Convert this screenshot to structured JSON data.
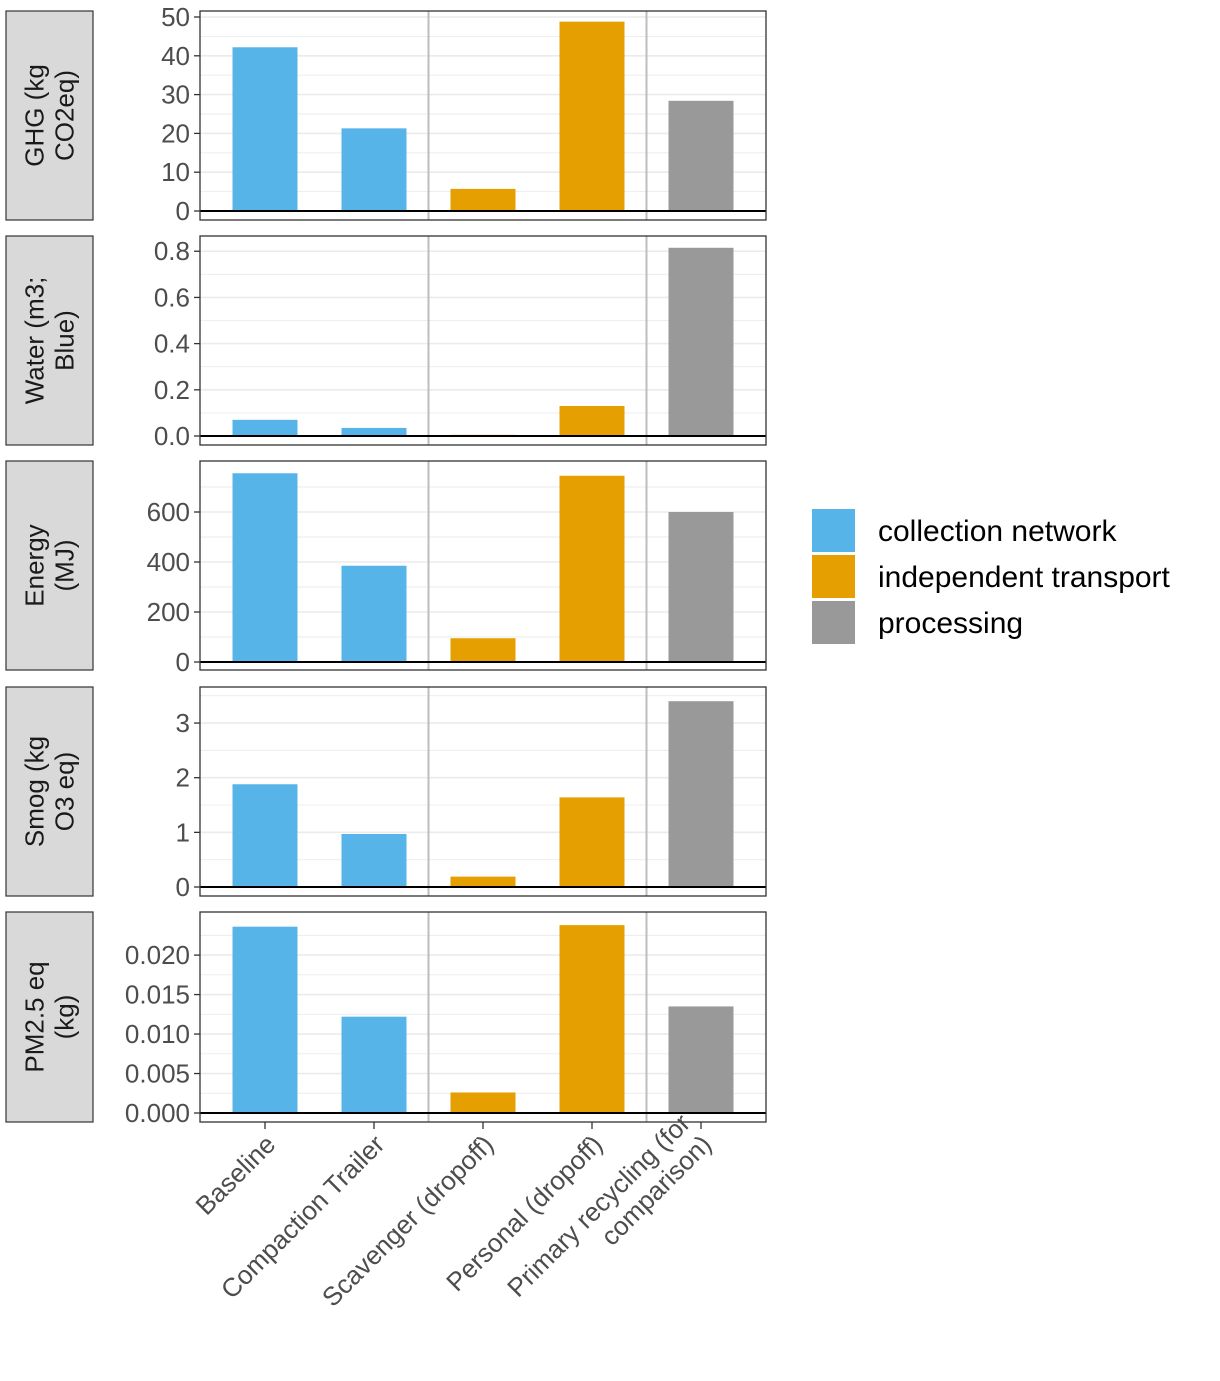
{
  "chart_data": {
    "type": "bar",
    "categories": [
      "Baseline",
      "Compaction Trailer",
      "Scavenger (dropoff)",
      "Personal (dropoff)",
      "Primary recycling (for\ncomparison)"
    ],
    "category_groups": [
      "collection network",
      "collection network",
      "independent transport",
      "independent transport",
      "processing"
    ],
    "legend": {
      "position": "right",
      "entries": [
        {
          "name": "collection network",
          "color": "#56B4E9"
        },
        {
          "name": "independent transport",
          "color": "#E69F00"
        },
        {
          "name": "processing",
          "color": "#999999"
        }
      ]
    },
    "grid": true,
    "panels": [
      {
        "strip_label": "GHG (kg\nCO2eq)",
        "values": [
          42.2,
          21.3,
          5.7,
          48.8,
          28.4
        ],
        "ylim": [
          0,
          50
        ],
        "ticks": [
          0,
          10,
          20,
          30,
          40,
          50
        ],
        "tick_labels": [
          "0",
          "10",
          "20",
          "30",
          "40",
          "50"
        ]
      },
      {
        "strip_label": "Water (m3;\nBlue)",
        "values": [
          0.07,
          0.035,
          0.005,
          0.13,
          0.815
        ],
        "ylim": [
          0,
          0.84
        ],
        "ticks": [
          0,
          0.2,
          0.4,
          0.6,
          0.8
        ],
        "tick_labels": [
          "0.0",
          "0.2",
          "0.4",
          "0.6",
          "0.8"
        ]
      },
      {
        "strip_label": "Energy\n(MJ)",
        "values": [
          755,
          385,
          95,
          745,
          600
        ],
        "ylim": [
          0,
          780
        ],
        "ticks": [
          0,
          200,
          400,
          600
        ],
        "tick_labels": [
          "0",
          "200",
          "400",
          "600"
        ]
      },
      {
        "strip_label": "Smog (kg\nO3 eq)",
        "values": [
          1.88,
          0.97,
          0.19,
          1.64,
          3.4
        ],
        "ylim": [
          0,
          3.55
        ],
        "ticks": [
          0,
          1,
          2,
          3
        ],
        "tick_labels": [
          "0",
          "1",
          "2",
          "3"
        ]
      },
      {
        "strip_label": "PM2.5 eq\n(kg)",
        "values": [
          0.0236,
          0.0122,
          0.0026,
          0.0238,
          0.0135
        ],
        "ylim": [
          0,
          0.0247
        ],
        "ticks": [
          0,
          0.005,
          0.01,
          0.015,
          0.02
        ],
        "tick_labels": [
          "0.000",
          "0.005",
          "0.010",
          "0.015",
          "0.020"
        ]
      }
    ],
    "separators_after_category": [
      2,
      4
    ]
  }
}
